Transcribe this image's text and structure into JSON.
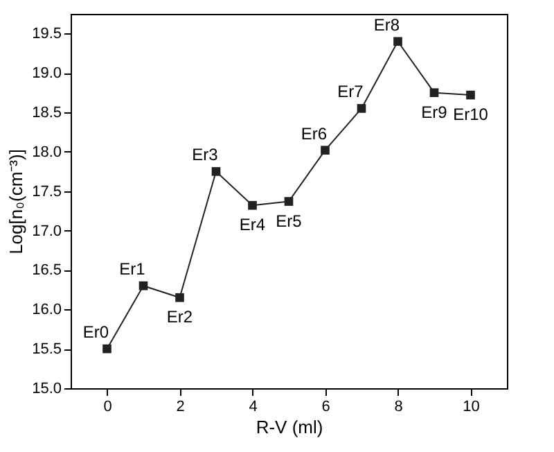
{
  "chart_data": {
    "type": "line",
    "xlabel": "R-V (ml)",
    "ylabel": "Log[n₀(cm⁻³)]",
    "x": [
      0,
      1,
      2,
      3,
      4,
      5,
      6,
      7,
      8,
      9,
      10
    ],
    "series": [
      {
        "color": "#222222",
        "values": [
          15.5,
          16.3,
          16.15,
          17.75,
          17.32,
          17.37,
          18.02,
          18.55,
          19.4,
          18.75,
          18.72
        ]
      }
    ],
    "xlim": [
      -1,
      11
    ],
    "xticks": [
      0,
      2,
      4,
      6,
      8,
      10
    ],
    "ylim": [
      15.0,
      19.75
    ],
    "yticks": [
      {
        "value": 15,
        "label": "15.0"
      },
      15.5,
      {
        "value": 16,
        "label": "16.0"
      },
      16.5,
      {
        "value": 17,
        "label": "17.0"
      },
      17.5,
      {
        "value": 18,
        "label": "18.0"
      },
      18.5,
      {
        "value": 19,
        "label": "19.0"
      },
      19.5
    ],
    "marker": "square",
    "line_style": "solid",
    "annotations": [
      {
        "text": "Er0",
        "x": 0,
        "y": 15.5
      },
      {
        "text": "Er1",
        "x": 1,
        "y": 16.3
      },
      {
        "text": "Er2",
        "x": 2,
        "y": 16.15
      },
      {
        "text": "Er3",
        "x": 3,
        "y": 17.75
      },
      {
        "text": "Er4",
        "x": 4,
        "y": 17.32
      },
      {
        "text": "Er5",
        "x": 5,
        "y": 17.37
      },
      {
        "text": "Er6",
        "x": 6,
        "y": 18.02
      },
      {
        "text": "Er7",
        "x": 7,
        "y": 18.55
      },
      {
        "text": "Er8",
        "x": 8,
        "y": 19.4
      },
      {
        "text": "Er9",
        "x": 9,
        "y": 18.75
      },
      {
        "text": "Er10",
        "x": 10,
        "y": 18.72
      }
    ]
  }
}
